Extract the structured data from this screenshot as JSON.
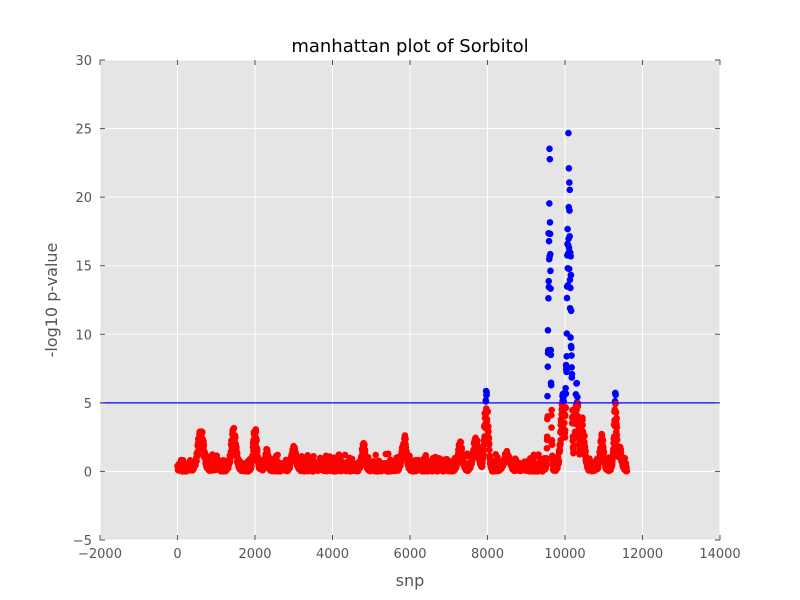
{
  "chart_data": {
    "type": "scatter",
    "title": "manhattan plot of Sorbitol",
    "xlabel": "snp",
    "ylabel": "-log10 p-value",
    "xlim": [
      -2000,
      14000
    ],
    "ylim": [
      -5,
      30
    ],
    "x_ticks": [
      "−2000",
      "0",
      "2000",
      "4000",
      "6000",
      "8000",
      "10000",
      "12000",
      "14000"
    ],
    "y_ticks": [
      "−5",
      "0",
      "5",
      "10",
      "15",
      "20",
      "25",
      "30"
    ],
    "grid": true,
    "threshold": 5,
    "colors": {
      "below_threshold": "#ff0000",
      "above_threshold": "#0000ff",
      "threshold_line": "#0000ff",
      "plot_background": "#e5e5e5",
      "grid": "#ffffff"
    },
    "snp_count": 11600,
    "peaks": [
      {
        "center": 600,
        "height": 3.3,
        "width": 80
      },
      {
        "center": 1450,
        "height": 3.2,
        "width": 70
      },
      {
        "center": 2000,
        "height": 3.4,
        "width": 50
      },
      {
        "center": 2300,
        "height": 1.7,
        "width": 40
      },
      {
        "center": 3000,
        "height": 2.0,
        "width": 60
      },
      {
        "center": 4800,
        "height": 2.2,
        "width": 50
      },
      {
        "center": 5850,
        "height": 2.8,
        "width": 60
      },
      {
        "center": 7300,
        "height": 2.3,
        "width": 60
      },
      {
        "center": 7700,
        "height": 2.5,
        "width": 80
      },
      {
        "center": 7970,
        "height": 6.3,
        "width": 50
      },
      {
        "center": 8500,
        "height": 1.5,
        "width": 80
      },
      {
        "center": 9600,
        "height": 25.7,
        "width": 30
      },
      {
        "center": 9950,
        "height": 6.0,
        "width": 60
      },
      {
        "center": 10100,
        "height": 26.0,
        "width": 50
      },
      {
        "center": 10300,
        "height": 7.0,
        "width": 50
      },
      {
        "center": 10450,
        "height": 4.0,
        "width": 60
      },
      {
        "center": 10950,
        "height": 2.8,
        "width": 50
      },
      {
        "center": 11300,
        "height": 5.8,
        "width": 40
      },
      {
        "center": 11400,
        "height": 2.0,
        "width": 60
      }
    ]
  }
}
